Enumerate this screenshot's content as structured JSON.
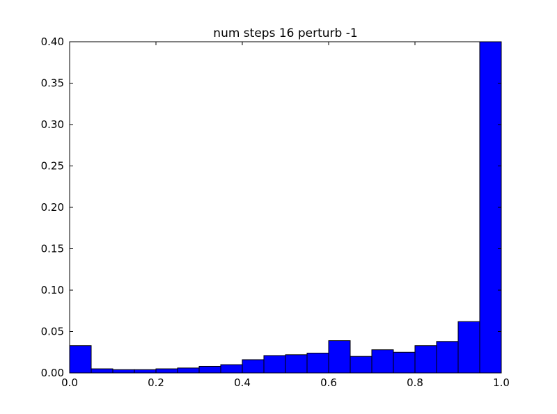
{
  "chart_data": {
    "type": "bar",
    "title": "num steps 16 perturb -1",
    "xlabel": "",
    "ylabel": "",
    "xlim": [
      0.0,
      1.0
    ],
    "ylim": [
      0.0,
      0.4
    ],
    "bin_width": 0.05,
    "bin_edges": [
      0.0,
      0.05,
      0.1,
      0.15,
      0.2,
      0.25,
      0.3,
      0.35,
      0.4,
      0.45,
      0.5,
      0.55,
      0.6,
      0.65,
      0.7,
      0.75,
      0.8,
      0.85,
      0.9,
      0.95,
      1.0
    ],
    "values": [
      0.033,
      0.005,
      0.004,
      0.004,
      0.005,
      0.006,
      0.008,
      0.01,
      0.016,
      0.021,
      0.022,
      0.024,
      0.039,
      0.02,
      0.028,
      0.025,
      0.033,
      0.038,
      0.062,
      0.4
    ],
    "x_ticks": [
      0.0,
      0.2,
      0.4,
      0.6,
      0.8,
      1.0
    ],
    "x_tick_labels": [
      "0.0",
      "0.2",
      "0.4",
      "0.6",
      "0.8",
      "1.0"
    ],
    "y_ticks": [
      0.0,
      0.05,
      0.1,
      0.15,
      0.2,
      0.25,
      0.3,
      0.35,
      0.4
    ],
    "y_tick_labels": [
      "0.00",
      "0.05",
      "0.10",
      "0.15",
      "0.20",
      "0.25",
      "0.30",
      "0.35",
      "0.40"
    ],
    "bar_color": "#0000ff",
    "edge_color": "#000000",
    "grid": false,
    "legend": "none"
  }
}
